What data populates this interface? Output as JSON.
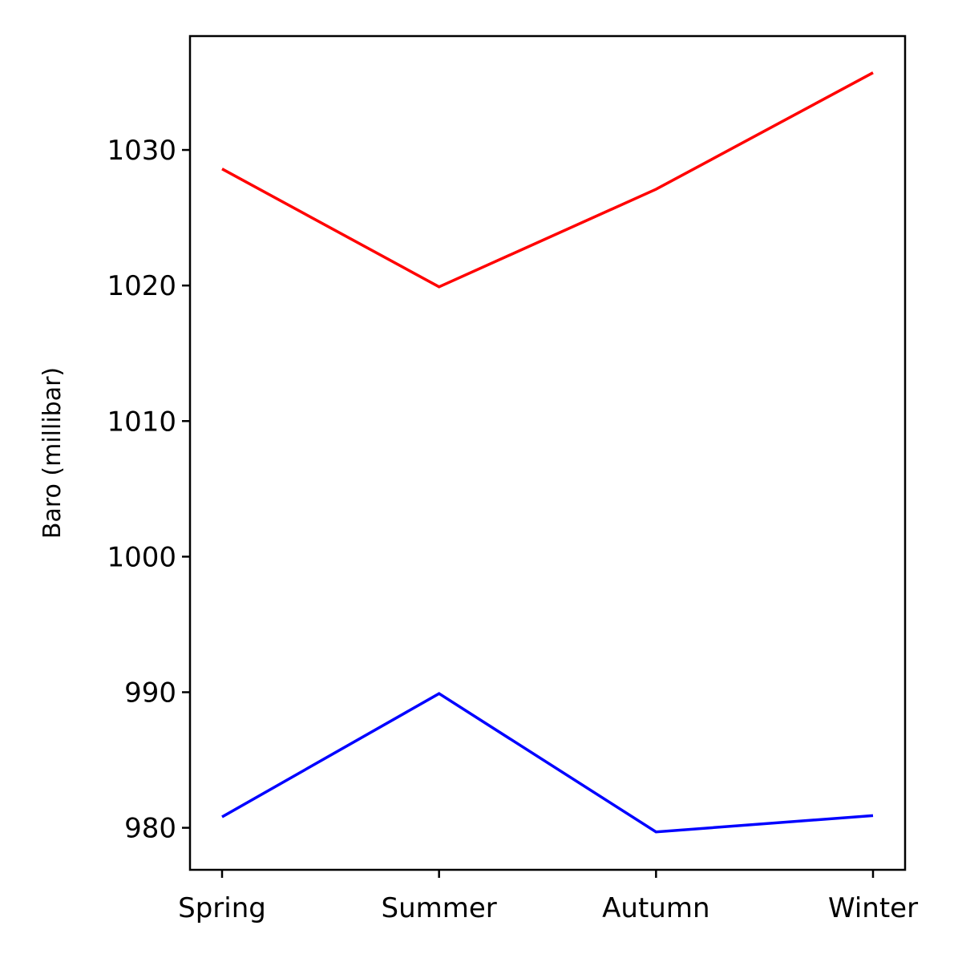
{
  "chart_data": {
    "type": "line",
    "title": "",
    "xlabel": "",
    "ylabel": "Baro (millibar)",
    "categories": [
      "Spring",
      "Summer",
      "Autumn",
      "Winter"
    ],
    "ylim": [
      976.9,
      1038.4
    ],
    "yticks": [
      980,
      990,
      1000,
      1010,
      1020,
      1030
    ],
    "ytick_labels": [
      "980",
      "990",
      "1000",
      "1010",
      "1020",
      "1030"
    ],
    "grid": false,
    "legend": "none",
    "series": [
      {
        "color": "#ff0000",
        "values": [
          1028.6,
          1019.9,
          1027.1,
          1035.7
        ]
      },
      {
        "color": "#0000ff",
        "values": [
          980.8,
          989.9,
          979.7,
          980.9
        ]
      }
    ]
  }
}
